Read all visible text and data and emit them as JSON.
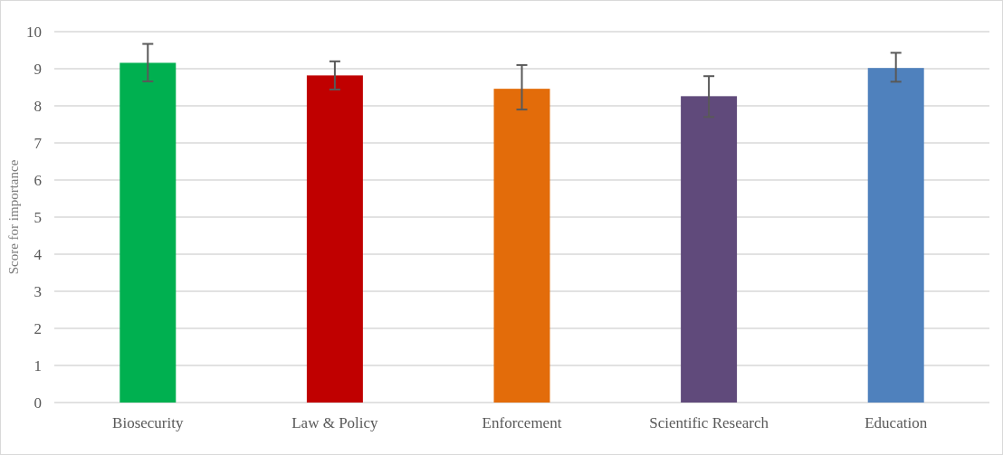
{
  "chart_data": {
    "type": "bar",
    "ylabel": "Score for importance",
    "categories": [
      "Biosecurity",
      "Law & Policy",
      "Enforcement",
      "Scientific Research",
      "Education"
    ],
    "values": [
      9.16,
      8.82,
      8.46,
      8.26,
      9.02
    ],
    "colors": [
      "#00b050",
      "#c00000",
      "#e36c0a",
      "#604a7b",
      "#4f81bd"
    ],
    "errors": [
      [
        8.66,
        9.67
      ],
      [
        8.44,
        9.2
      ],
      [
        7.9,
        9.1
      ],
      [
        7.7,
        8.8
      ],
      [
        8.65,
        9.43
      ]
    ],
    "ylim": [
      0,
      10
    ],
    "yticks": [
      0,
      1,
      2,
      3,
      4,
      5,
      6,
      7,
      8,
      9,
      10
    ],
    "grid": "y"
  }
}
